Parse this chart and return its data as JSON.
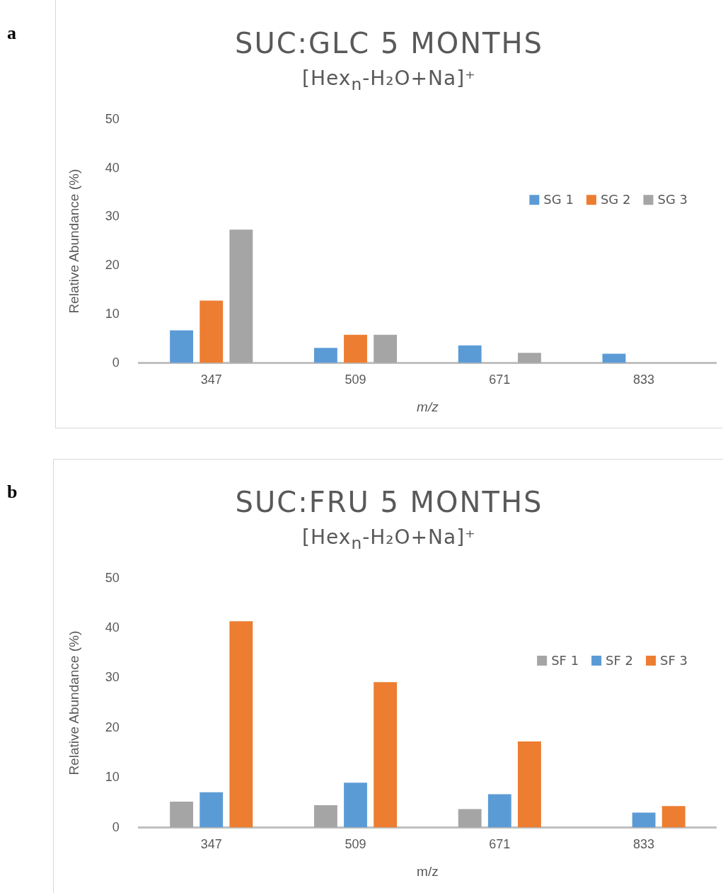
{
  "chart_data": [
    {
      "type": "bar",
      "title": "SUC:GLC 5 MONTHS",
      "subtitle": "[Hex$_{n}$-H₂O+Na]⁺",
      "xlabel": "m/z",
      "ylabel": "Relative Abundance (%)",
      "categories": [
        "347",
        "509",
        "671",
        "833"
      ],
      "series": [
        {
          "name": "SG 1",
          "color": "#5b9bd5",
          "values": [
            6.7,
            3.1,
            3.6,
            1.9
          ]
        },
        {
          "name": "SG 2",
          "color": "#ed7d31",
          "values": [
            12.8,
            5.8,
            0,
            0
          ]
        },
        {
          "name": "SG 3",
          "color": "#a5a5a5",
          "values": [
            27.4,
            5.8,
            2.1,
            0
          ]
        }
      ],
      "ylim": [
        0,
        50
      ],
      "yticks": [
        0,
        10,
        20,
        30,
        40,
        50
      ],
      "grid": false,
      "legend": "top right",
      "annotations": [
        "a"
      ]
    },
    {
      "type": "bar",
      "title": "SUC:FRU 5 MONTHS",
      "subtitle": "[Hex$_{n}$-H₂O+Na]⁺",
      "xlabel": "m/z",
      "ylabel": "Relative Abundance (%)",
      "categories": [
        "347",
        "509",
        "671",
        "833"
      ],
      "series": [
        {
          "name": "SF 1",
          "color": "#a5a5a5",
          "values": [
            5.2,
            4.5,
            3.7,
            0
          ]
        },
        {
          "name": "SF 2",
          "color": "#5b9bd5",
          "values": [
            7.1,
            9.0,
            6.7,
            3.0
          ]
        },
        {
          "name": "SF 3",
          "color": "#ed7d31",
          "values": [
            41.4,
            29.2,
            17.3,
            4.3
          ]
        }
      ],
      "ylim": [
        0,
        50
      ],
      "yticks": [
        0,
        10,
        20,
        30,
        40,
        50
      ],
      "grid": false,
      "legend": "top right",
      "annotations": [
        "b"
      ]
    }
  ]
}
